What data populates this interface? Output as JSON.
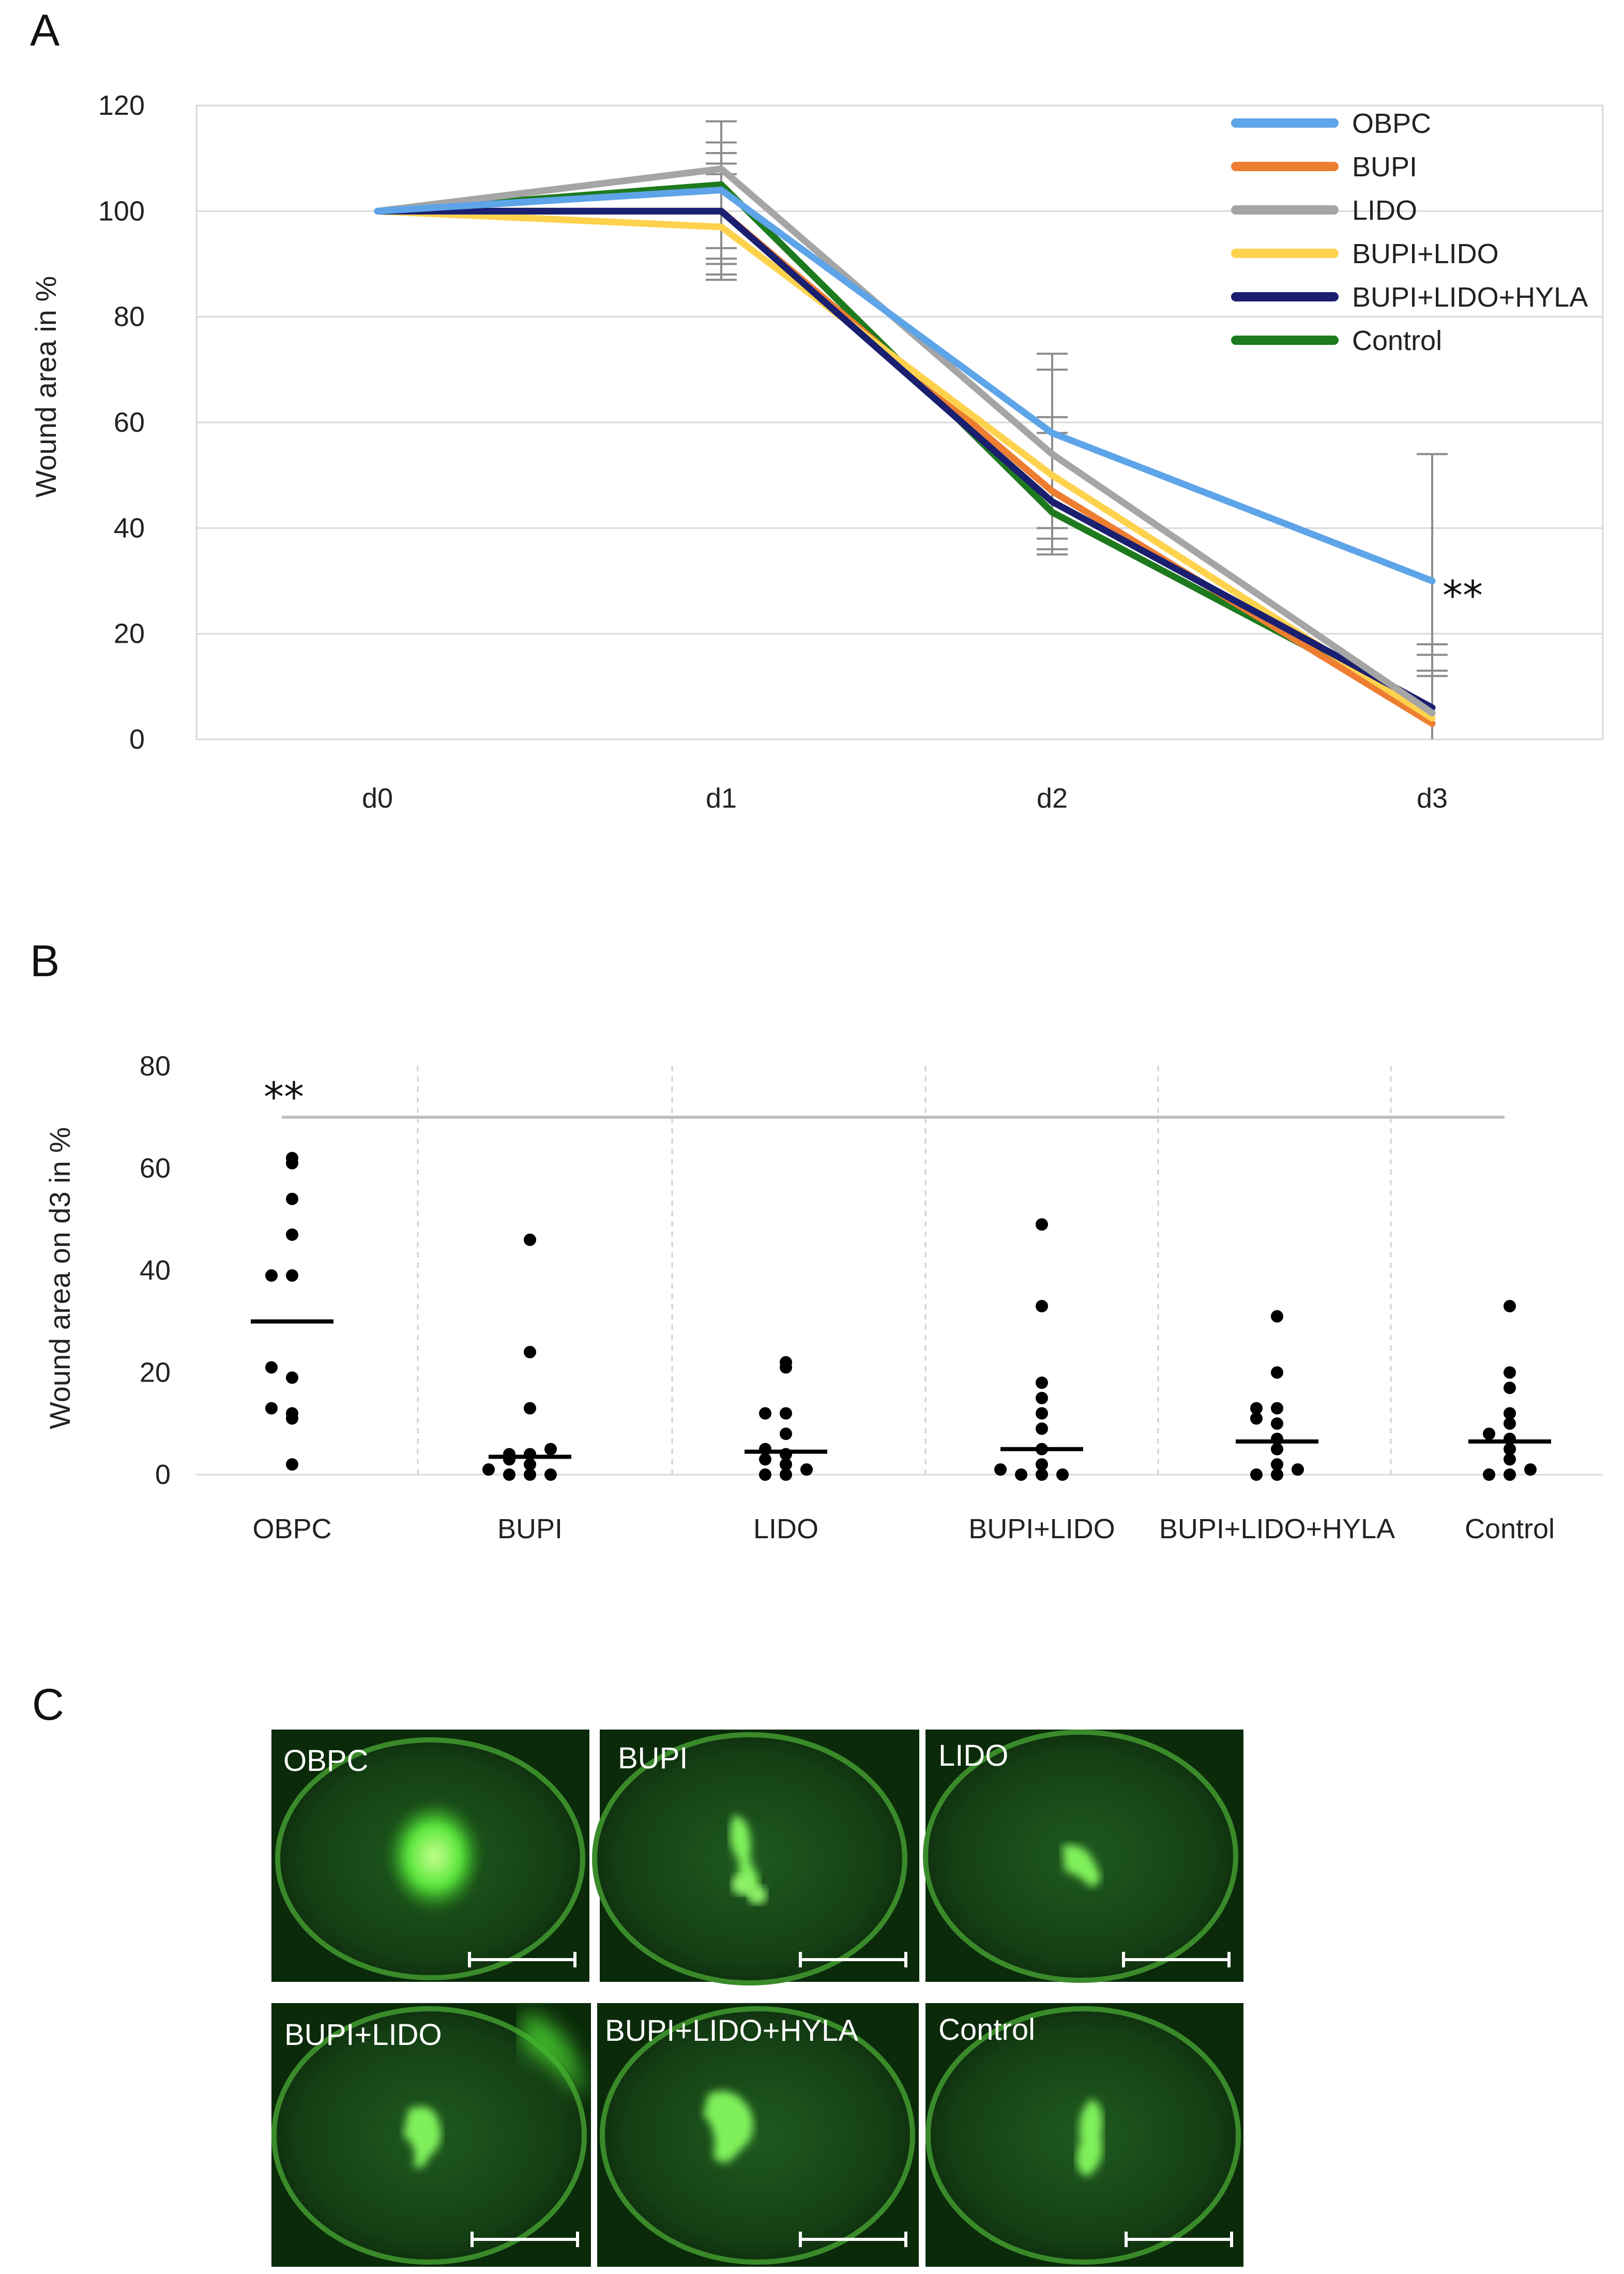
{
  "figure": {
    "panel_labels": [
      "A",
      "B",
      "C"
    ]
  },
  "chart_data": [
    {
      "type": "line",
      "panel": "A",
      "title": "",
      "xlabel": "",
      "ylabel": "Wound area in %",
      "categories": [
        "d0",
        "d1",
        "d2",
        "d3"
      ],
      "ylim": [
        0,
        120
      ],
      "yticks": [
        0,
        20,
        40,
        60,
        80,
        100,
        120
      ],
      "series": [
        {
          "name": "OBPC",
          "color": "#5ea4e8",
          "values": [
            100,
            104,
            58,
            30
          ]
        },
        {
          "name": "BUPI",
          "color": "#ed7d31",
          "values": [
            100,
            100,
            47,
            3
          ]
        },
        {
          "name": "LIDO",
          "color": "#a5a5a5",
          "values": [
            100,
            108,
            54,
            5
          ]
        },
        {
          "name": "BUPI+LIDO",
          "color": "#ffd24d",
          "values": [
            100,
            97,
            50,
            4
          ]
        },
        {
          "name": "BUPI+LIDO+HYLA",
          "color": "#1a1f70",
          "values": [
            100,
            100,
            45,
            6
          ]
        },
        {
          "name": "Control",
          "color": "#1e7a1e",
          "values": [
            100,
            105,
            43,
            5
          ]
        }
      ],
      "error_bars": [
        {
          "x": "d1",
          "ranges": [
            [
              87,
              117
            ],
            [
              88,
              113
            ],
            [
              90,
              111
            ],
            [
              91,
              109
            ],
            [
              93,
              107
            ]
          ]
        },
        {
          "x": "d2",
          "ranges": [
            [
              35,
              73
            ],
            [
              36,
              70
            ],
            [
              38,
              61
            ],
            [
              40,
              58
            ]
          ]
        },
        {
          "x": "d3",
          "ranges": [
            [
              0,
              54
            ],
            [
              0,
              18
            ],
            [
              0,
              16
            ],
            [
              0,
              13
            ],
            [
              0,
              12
            ]
          ]
        }
      ],
      "annotation": {
        "text": "**",
        "x": "d3",
        "y": 28
      },
      "legend_position": "top-right",
      "grid": true
    },
    {
      "type": "scatter",
      "panel": "B",
      "title": "",
      "xlabel": "",
      "ylabel": "Wound area on d3 in %",
      "categories": [
        "OBPC",
        "BUPI",
        "LIDO",
        "BUPI+LIDO",
        "BUPI+LIDO+HYLA",
        "Control"
      ],
      "ylim": [
        0,
        80
      ],
      "yticks": [
        0,
        20,
        40,
        60,
        80
      ],
      "points": [
        [
          2,
          11,
          12,
          13,
          19,
          21,
          39,
          39,
          47,
          54,
          61,
          62
        ],
        [
          0,
          0,
          0,
          1,
          2,
          3,
          4,
          4,
          5,
          13,
          24,
          46
        ],
        [
          0,
          0,
          1,
          2,
          3,
          4,
          5,
          8,
          12,
          12,
          21,
          22
        ],
        [
          0,
          0,
          0,
          1,
          2,
          5,
          9,
          12,
          15,
          18,
          33,
          49
        ],
        [
          0,
          0,
          1,
          2,
          5,
          7,
          10,
          11,
          13,
          13,
          20,
          31
        ],
        [
          0,
          0,
          1,
          3,
          5,
          7,
          8,
          10,
          12,
          17,
          20,
          33
        ]
      ],
      "means": [
        30,
        3.5,
        4.5,
        5,
        6.5,
        6.5
      ],
      "significance": {
        "text": "**",
        "bar_y": 70,
        "from": "OBPC",
        "to": "Control"
      },
      "grid": true
    }
  ],
  "panel_c": {
    "images": [
      {
        "label": "OBPC",
        "description": "fluorescein stained eye, large bright lesion"
      },
      {
        "label": "BUPI",
        "description": "fluorescein stained eye"
      },
      {
        "label": "LIDO",
        "description": "fluorescein stained eye"
      },
      {
        "label": "BUPI+LIDO",
        "description": "fluorescein stained eye"
      },
      {
        "label": "BUPI+LIDO+HYLA",
        "description": "fluorescein stained eye"
      },
      {
        "label": "Control",
        "description": "fluorescein stained eye"
      }
    ]
  }
}
